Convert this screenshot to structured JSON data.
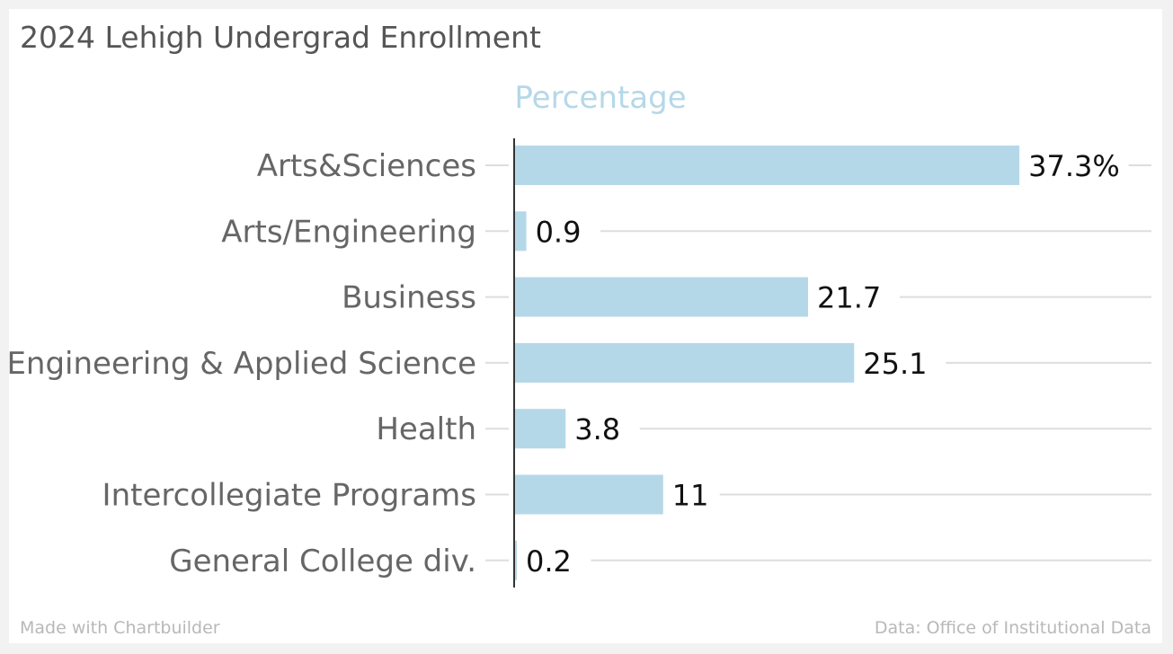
{
  "header": {
    "title": "2024 Lehigh Undergrad Enrollment"
  },
  "footer": {
    "credit": "Made with Chartbuilder",
    "source": "Data: Office of Institutional Data"
  },
  "colors": {
    "bar": "#b5d8e8",
    "grid": "#dddddd",
    "axis": "#333333"
  },
  "chart_data": {
    "type": "bar",
    "orientation": "horizontal",
    "series": [
      {
        "name": "Percentage",
        "values": [
          37.3,
          0.9,
          21.7,
          25.1,
          3.8,
          11,
          0.2
        ]
      }
    ],
    "categories": [
      "Arts&Sciences",
      "Arts/Engineering",
      "Business",
      "Engineering & Applied Science",
      "Health",
      "Intercollegiate Programs",
      "General College div."
    ],
    "value_labels": [
      "37.3%",
      "0.9",
      "21.7",
      "25.1",
      "3.8",
      "11",
      "0.2"
    ],
    "title": "2024 Lehigh Undergrad Enrollment",
    "xlim": [
      0,
      45
    ],
    "grid": true,
    "legend": "top"
  }
}
